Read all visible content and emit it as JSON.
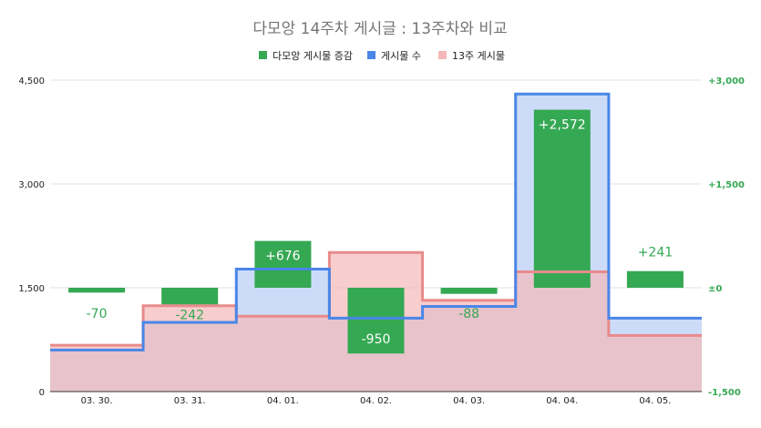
{
  "chart_data": {
    "type": "combo",
    "title": "다모앙 14주차 게시글 : 13주차와 비교",
    "categories": [
      "03. 30.",
      "03. 31.",
      "04. 01.",
      "04. 02.",
      "04. 03.",
      "04. 04.",
      "04. 05."
    ],
    "left_axis": {
      "min": 0,
      "max": 4500,
      "ticks": [
        "0",
        "1,500",
        "3,000",
        "4,500"
      ],
      "tick_values": [
        0,
        1500,
        3000,
        4500
      ]
    },
    "right_axis": {
      "min": -1500,
      "max": 3000,
      "ticks": [
        "-1,500",
        "±0",
        "+1,500",
        "+3,000"
      ],
      "tick_values": [
        -1500,
        0,
        1500,
        3000
      ]
    },
    "legend_position": "top",
    "gridlines": true,
    "series": [
      {
        "name": "다모앙 게시물 증감",
        "type": "bar",
        "axis": "right",
        "color": "#34a853",
        "values": [
          -70,
          -242,
          676,
          -950,
          -88,
          2572,
          241
        ],
        "labels": [
          "-70",
          "-242",
          "+676",
          "-950",
          "-88",
          "+2,572",
          "+241"
        ]
      },
      {
        "name": "게시물 수",
        "type": "stepped-area",
        "axis": "left",
        "color": "#4a86e8",
        "fill": "#c9daf8",
        "values": [
          600,
          1000,
          1770,
          1060,
          1230,
          4300,
          1060
        ]
      },
      {
        "name": "13주 게시물",
        "type": "stepped-area",
        "axis": "left",
        "color": "#e88b8b",
        "fill": "#f4b8b8",
        "values": [
          670,
          1240,
          1090,
          2010,
          1320,
          1730,
          810
        ]
      }
    ]
  },
  "colors": {
    "grid": "#e0e0e0",
    "axis": "#333333",
    "label_light": "#ffffff",
    "label_green": "#34a853"
  }
}
